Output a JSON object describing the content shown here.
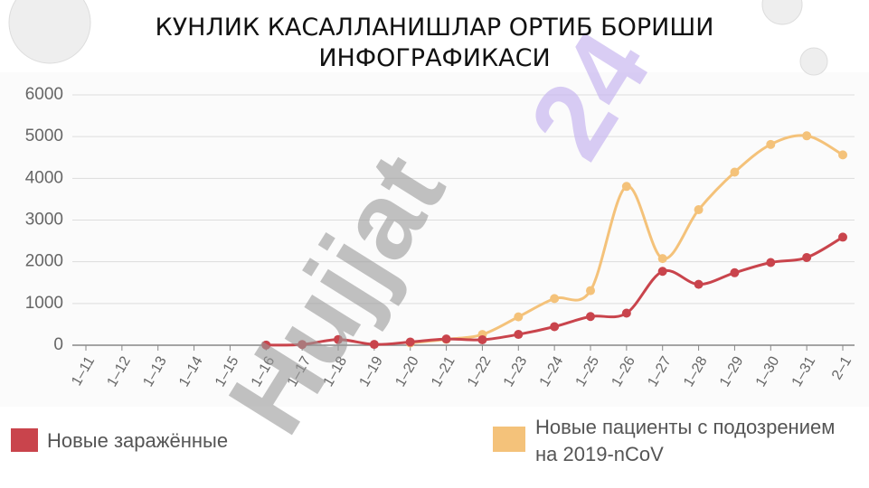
{
  "chart_data": {
    "type": "line",
    "title": "КУНЛИК КАСАЛЛАНИШЛАР ОРТИБ БОРИШИ ИНФОГРАФИКАСИ",
    "watermark": [
      "Hujjat",
      "24"
    ],
    "categories": [
      "1–11",
      "1–12",
      "1–13",
      "1–14",
      "1–15",
      "1–16",
      "1–17",
      "1–18",
      "1–19",
      "1–20",
      "1–21",
      "1–22",
      "1–23",
      "1–24",
      "1–25",
      "1–26",
      "1–27",
      "1–28",
      "1–29",
      "1–30",
      "1–31",
      "2–1"
    ],
    "series": [
      {
        "name": "Новые заражённые",
        "color": "#c9444c",
        "values": [
          null,
          null,
          null,
          null,
          null,
          4,
          17,
          136,
          19,
          77,
          149,
          131,
          259,
          444,
          688,
          769,
          1771,
          1459,
          1737,
          1982,
          2102,
          2590
        ]
      },
      {
        "name": "Новые пациенты с подозрением на 2019-nCoV",
        "color": "#f4c27a",
        "values": [
          null,
          null,
          null,
          null,
          null,
          null,
          null,
          null,
          null,
          54,
          140,
          257,
          680,
          1118,
          1309,
          3806,
          2077,
          3248,
          4148,
          4812,
          5019,
          4562
        ]
      }
    ],
    "ylim": [
      0,
      6000
    ],
    "yticks": [
      0,
      1000,
      2000,
      3000,
      4000,
      5000,
      6000
    ],
    "grid": true
  }
}
